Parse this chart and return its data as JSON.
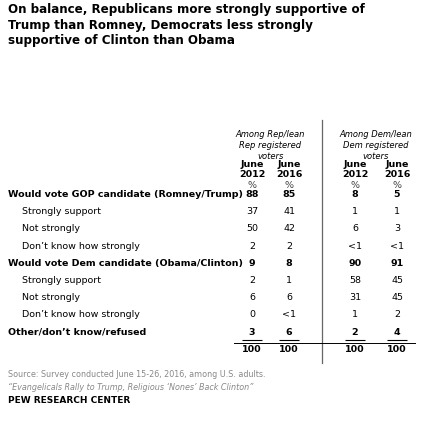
{
  "title": "On balance, Republicans more strongly supportive of\nTrump than Romney, Democrats less strongly\nsupportive of Clinton than Obama",
  "rep_header": "Among Rep/lean\nRep registered\nvoters",
  "dem_header": "Among Dem/lean\nDem registered\nvoters",
  "sub_headers": [
    "June\n2012",
    "June\n2016",
    "June\n2012",
    "June\n2016"
  ],
  "rows": [
    {
      "label": "Would vote GOP candidate (Romney/Trump)",
      "indent": false,
      "bold": true,
      "values": [
        "88",
        "85",
        "8",
        "5"
      ],
      "underline": false
    },
    {
      "label": "Strongly support",
      "indent": true,
      "bold": false,
      "values": [
        "37",
        "41",
        "1",
        "1"
      ],
      "underline": false
    },
    {
      "label": "Not strongly",
      "indent": true,
      "bold": false,
      "values": [
        "50",
        "42",
        "6",
        "3"
      ],
      "underline": false
    },
    {
      "label": "Don’t know how strongly",
      "indent": true,
      "bold": false,
      "values": [
        "2",
        "2",
        "<1",
        "<1"
      ],
      "underline": false
    },
    {
      "label": "Would vote Dem candidate (Obama/Clinton)",
      "indent": false,
      "bold": true,
      "values": [
        "9",
        "8",
        "90",
        "91"
      ],
      "underline": false
    },
    {
      "label": "Strongly support",
      "indent": true,
      "bold": false,
      "values": [
        "2",
        "1",
        "58",
        "45"
      ],
      "underline": false
    },
    {
      "label": "Not strongly",
      "indent": true,
      "bold": false,
      "values": [
        "6",
        "6",
        "31",
        "45"
      ],
      "underline": false
    },
    {
      "label": "Don’t know how strongly",
      "indent": true,
      "bold": false,
      "values": [
        "0",
        "<1",
        "1",
        "2"
      ],
      "underline": false
    },
    {
      "label": "Other/don’t know/refused",
      "indent": false,
      "bold": true,
      "values": [
        "3",
        "6",
        "2",
        "4"
      ],
      "underline": true
    },
    {
      "label": "",
      "indent": false,
      "bold": true,
      "values": [
        "100",
        "100",
        "100",
        "100"
      ],
      "underline": false
    }
  ],
  "source_text": "Source: Survey conducted June 15-26, 2016, among U.S. adults.",
  "source_text2": "“Evangelicals Rally to Trump, Religious ‘Nones’ Back Clinton”",
  "source_text3": "PEW RESEARCH CENTER",
  "bg": "#ffffff",
  "text_color": "#000000",
  "gray": "#888888"
}
